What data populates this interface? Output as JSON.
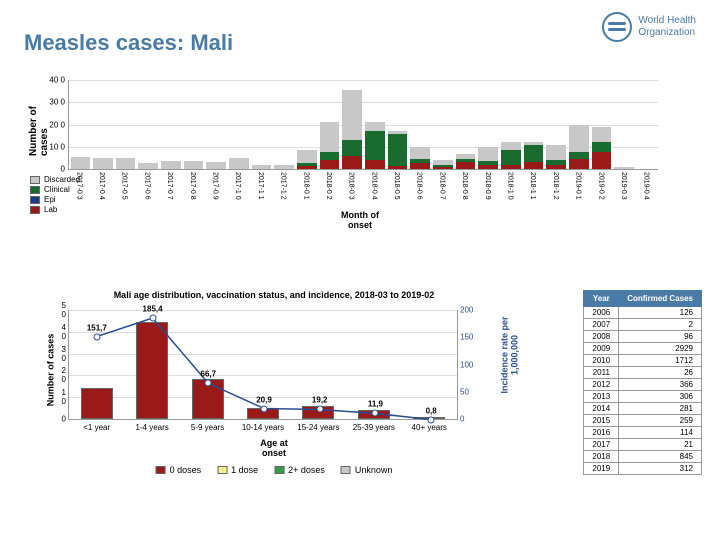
{
  "title": "Measles cases: Mali",
  "logo": {
    "line1": "World Health",
    "line2": "Organization"
  },
  "colors": {
    "discarded": "#c8c8c8",
    "clinical": "#1a6b2f",
    "epi": "#1a3a8a",
    "lab": "#9a1a1a",
    "dose0": "#9a1a1a",
    "dose1": "#f5f090",
    "dose2": "#3a9a4a",
    "doseU": "#c8c8c8",
    "line": "#2a4d8f"
  },
  "chart1": {
    "ylabel": "Number of\ncases",
    "xlabel": "Month of\nonset",
    "ymax": 400,
    "ystep": 100,
    "yticks": [
      0,
      100,
      200,
      300,
      400
    ],
    "ytick_labels": [
      "0",
      "10 0",
      "20 0",
      "30 0",
      "40 0"
    ],
    "legend": [
      "Discarded",
      "Clinical",
      "Epi",
      "Lab"
    ],
    "months": [
      "2017-0 3",
      "2017-0 4",
      "2017-0 5",
      "2017-0 6",
      "2017-0 7",
      "2017-0 8",
      "2017-0 9",
      "2017-1 0",
      "2017-1 1",
      "2017-1 2",
      "2018-0 1",
      "2018-0 2",
      "2018-0 3",
      "2018-0 4",
      "2018-0 5",
      "2018-0 6",
      "2018-0 7",
      "2018-0 8",
      "2018-0 9",
      "2018-1 0",
      "2018-1 1",
      "2018-1 2",
      "2019-0 1",
      "2019-0 2",
      "2019-0 3",
      "2019-0 4"
    ],
    "stacks": [
      {
        "lab": 0,
        "epi": 0,
        "clinical": 0,
        "discarded": 55
      },
      {
        "lab": 0,
        "epi": 0,
        "clinical": 0,
        "discarded": 50
      },
      {
        "lab": 0,
        "epi": 0,
        "clinical": 0,
        "discarded": 50
      },
      {
        "lab": 0,
        "epi": 0,
        "clinical": 0,
        "discarded": 28
      },
      {
        "lab": 0,
        "epi": 0,
        "clinical": 0,
        "discarded": 35
      },
      {
        "lab": 0,
        "epi": 0,
        "clinical": 0,
        "discarded": 35
      },
      {
        "lab": 0,
        "epi": 0,
        "clinical": 0,
        "discarded": 32
      },
      {
        "lab": 0,
        "epi": 0,
        "clinical": 0,
        "discarded": 50
      },
      {
        "lab": 0,
        "epi": 0,
        "clinical": 0,
        "discarded": 20
      },
      {
        "lab": 0,
        "epi": 0,
        "clinical": 0,
        "discarded": 18
      },
      {
        "lab": 15,
        "epi": 0,
        "clinical": 10,
        "discarded": 60
      },
      {
        "lab": 40,
        "epi": 0,
        "clinical": 35,
        "discarded": 135
      },
      {
        "lab": 60,
        "epi": 0,
        "clinical": 70,
        "discarded": 220
      },
      {
        "lab": 40,
        "epi": 0,
        "clinical": 130,
        "discarded": 40
      },
      {
        "lab": 15,
        "epi": 0,
        "clinical": 140,
        "discarded": 15
      },
      {
        "lab": 25,
        "epi": 0,
        "clinical": 20,
        "discarded": 55
      },
      {
        "lab": 10,
        "epi": 0,
        "clinical": 10,
        "discarded": 20
      },
      {
        "lab": 30,
        "epi": 0,
        "clinical": 15,
        "discarded": 20
      },
      {
        "lab": 20,
        "epi": 0,
        "clinical": 15,
        "discarded": 65
      },
      {
        "lab": 20,
        "epi": 0,
        "clinical": 65,
        "discarded": 35
      },
      {
        "lab": 30,
        "epi": 0,
        "clinical": 75,
        "discarded": 15
      },
      {
        "lab": 20,
        "epi": 0,
        "clinical": 20,
        "discarded": 65
      },
      {
        "lab": 45,
        "epi": 0,
        "clinical": 30,
        "discarded": 120
      },
      {
        "lab": 75,
        "epi": 0,
        "clinical": 45,
        "discarded": 65
      },
      {
        "lab": 0,
        "epi": 0,
        "clinical": 0,
        "discarded": 8
      },
      {
        "lab": 0,
        "epi": 0,
        "clinical": 0,
        "discarded": 0
      }
    ]
  },
  "chart2": {
    "title": "Mali age distribution, vaccination status, and incidence, 2018-03 to 2019-02",
    "ylabel": "Number of cases",
    "ylabel_r": "Incidence rate per\n1,000,000",
    "xlabel": "Age at\nonset",
    "ymax": 50,
    "yticks": [
      0,
      10,
      20,
      30,
      40,
      50
    ],
    "ytick_labels": [
      "0",
      "1 0",
      "2 0",
      "3 0",
      "4 0",
      "5 0"
    ],
    "yticks_r": [
      0,
      50,
      100,
      150,
      200
    ],
    "legend": [
      "0 doses",
      "1 dose",
      "2+ doses",
      "Unknown"
    ],
    "ages": [
      "<1 year",
      "1-4 years",
      "5-9 years",
      "10-14 years",
      "15-24 years",
      "25-39 years",
      "40+ years"
    ],
    "bars": [
      {
        "d0": 14,
        "d1": 0,
        "d2": 0,
        "du": 0
      },
      {
        "d0": 44,
        "d1": 0,
        "d2": 0,
        "du": 0
      },
      {
        "d0": 18,
        "d1": 0,
        "d2": 0,
        "du": 0
      },
      {
        "d0": 5,
        "d1": 0,
        "d2": 0,
        "du": 0
      },
      {
        "d0": 6,
        "d1": 0,
        "d2": 0,
        "du": 0
      },
      {
        "d0": 4,
        "d1": 0,
        "d2": 0,
        "du": 0
      },
      {
        "d0": 1,
        "d1": 0,
        "d2": 0,
        "du": 0
      }
    ],
    "incidence": [
      151.7,
      185.4,
      66.7,
      20.9,
      19.2,
      11.9,
      0.8
    ],
    "inc_max": 200
  },
  "table": {
    "headers": [
      "Year",
      "Confirmed Cases"
    ],
    "rows": [
      [
        "2006",
        "126"
      ],
      [
        "2007",
        "2"
      ],
      [
        "2008",
        "96"
      ],
      [
        "2009",
        "2929"
      ],
      [
        "2010",
        "1712"
      ],
      [
        "2011",
        "26"
      ],
      [
        "2012",
        "366"
      ],
      [
        "2013",
        "306"
      ],
      [
        "2014",
        "281"
      ],
      [
        "2015",
        "259"
      ],
      [
        "2016",
        "114"
      ],
      [
        "2017",
        "21"
      ],
      [
        "2018",
        "845"
      ],
      [
        "2019",
        "312"
      ]
    ]
  }
}
